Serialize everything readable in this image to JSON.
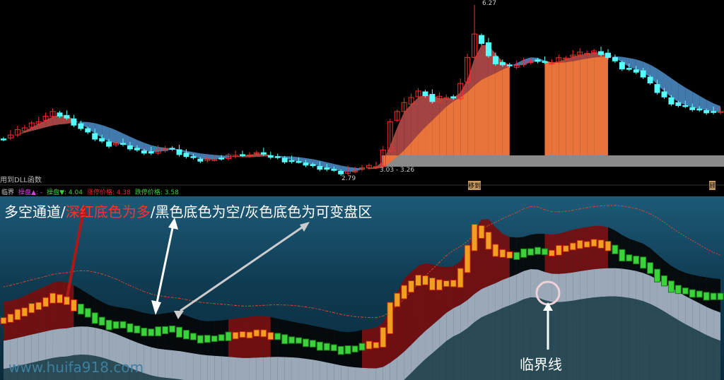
{
  "top_panel": {
    "dll_label": "用到DLL函数",
    "high_label": "6.27",
    "low_label": "2.79",
    "range_label": "3.03 - 3.26",
    "marker1": "移到",
    "marker2": "顾"
  },
  "indicator_bar": {
    "name": "临界",
    "buy_label": "操盘▲: -",
    "sell_label": "操盘▼: 4.04",
    "limit_up_label": "涨停价格: 4.38",
    "limit_down_label": "跌停价格: 3.58"
  },
  "annotations": {
    "part1": "多空通道/",
    "part2": "深红底色为多",
    "part3": "/黑色底色为空/灰色底色为可变盘区",
    "critical_line": "临界线",
    "watermark": "www.huifa918.com"
  },
  "colors": {
    "up": "#ff2a2a",
    "down": "#54ffff",
    "bull_band": "#c0504d",
    "bear_band": "#4f8fcc",
    "orange_band": "#e8743b",
    "green": "#3cd23c"
  },
  "chart_data": {
    "type": "candlestick",
    "y_range": [
      2.79,
      6.27
    ],
    "closes": [
      3.56,
      3.62,
      3.7,
      3.78,
      3.85,
      3.92,
      4.0,
      4.07,
      4.02,
      3.95,
      3.85,
      3.75,
      3.65,
      3.55,
      3.48,
      3.42,
      3.45,
      3.4,
      3.35,
      3.3,
      3.28,
      3.25,
      3.3,
      3.35,
      3.32,
      3.25,
      3.18,
      3.13,
      3.1,
      3.12,
      3.15,
      3.14,
      3.18,
      3.22,
      3.2,
      3.24,
      3.26,
      3.2,
      3.18,
      3.15,
      3.1,
      3.08,
      3.05,
      3.02,
      2.98,
      2.95,
      2.92,
      2.88,
      2.84,
      2.88,
      2.92,
      2.95,
      2.97,
      2.99,
      3.3,
      3.92,
      4.1,
      4.25,
      4.4,
      4.5,
      4.45,
      4.3,
      4.38,
      4.4,
      4.36,
      4.7,
      5.2,
      5.65,
      5.5,
      5.22,
      5.1,
      5.05,
      5.0,
      5.05,
      5.1,
      5.15,
      5.12,
      5.08,
      5.1,
      5.18,
      5.22,
      5.25,
      5.28,
      5.3,
      5.32,
      5.29,
      5.2,
      5.1,
      4.98,
      4.95,
      4.93,
      4.8,
      4.65,
      4.5,
      4.38,
      4.28,
      4.22,
      4.18,
      4.15,
      4.12,
      4.1,
      4.08,
      4.07
    ]
  }
}
